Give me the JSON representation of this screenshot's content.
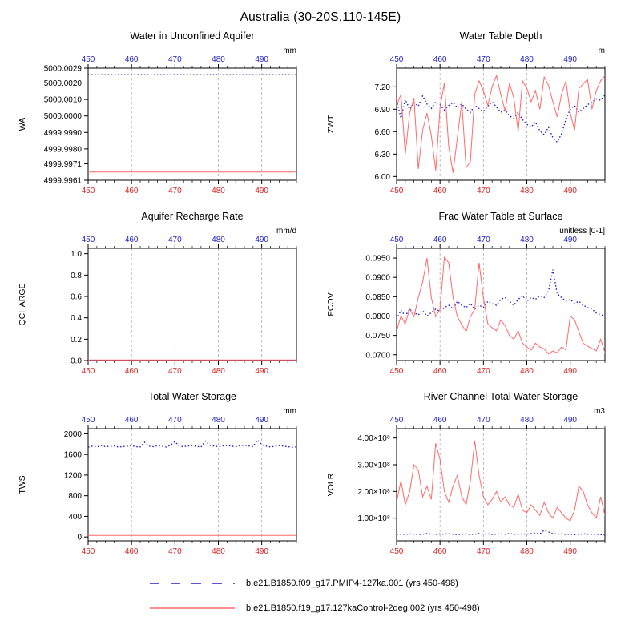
{
  "page_title": "Australia (30-20S,110-145E)",
  "colors": {
    "axis_top": "#2222cc",
    "axis_bottom": "#dd2222",
    "grid": "#aaaaaa",
    "frame": "#000000",
    "series_blue": "#2222cc",
    "series_red": "#ff6a6a"
  },
  "legend": {
    "entries": [
      {
        "label": "b.e21.B1850.f09_g17.PMIP4-127ka.001 (yrs 450-498)",
        "color": "#2222cc",
        "style": "dashed"
      },
      {
        "label": "b.e21.B1850.f19_g17.127kaControl-2deg.002 (yrs 450-498)",
        "color": "#ff6a6a",
        "style": "solid"
      }
    ]
  },
  "chart_data": [
    {
      "type": "line",
      "title": "Water in Unconfined Aquifer",
      "ylabel": "WA",
      "units": "mm",
      "xlim": [
        450,
        498
      ],
      "ylim": [
        4999.9961,
        5000.0029
      ],
      "x_ticks": [
        450,
        460,
        470,
        480,
        490
      ],
      "y_ticks": [
        {
          "v": 4999.9961,
          "label": "4999.9961"
        },
        {
          "v": 4999.9971,
          "label": "4999.9971"
        },
        {
          "v": 4999.998,
          "label": "4999.9980"
        },
        {
          "v": 4999.999,
          "label": "4999.9990"
        },
        {
          "v": 5000.0,
          "label": "5000.0000"
        },
        {
          "v": 5000.001,
          "label": "5000.0010"
        },
        {
          "v": 5000.002,
          "label": "5000.0020"
        },
        {
          "v": 5000.0029,
          "label": "5000.0029"
        }
      ],
      "series": [
        {
          "name": "PMIP4-127ka.001",
          "color": "#2222cc",
          "style": "dotted",
          "const": 5000.0025
        },
        {
          "name": "127kaControl-2deg.002",
          "color": "#ff6a6a",
          "style": "solid",
          "const": 4999.9966
        }
      ]
    },
    {
      "type": "line",
      "title": "Water Table Depth",
      "ylabel": "ZWT",
      "units": "m",
      "xlim": [
        450,
        498
      ],
      "ylim": [
        5.95,
        7.45
      ],
      "x_ticks": [
        450,
        460,
        470,
        480,
        490
      ],
      "y_ticks": [
        {
          "v": 6.0,
          "label": "6.00"
        },
        {
          "v": 6.3,
          "label": "6.30"
        },
        {
          "v": 6.6,
          "label": "6.60"
        },
        {
          "v": 6.9,
          "label": "6.90"
        },
        {
          "v": 7.2,
          "label": "7.20"
        }
      ],
      "series": [
        {
          "name": "PMIP4-127ka.001",
          "color": "#2222cc",
          "style": "dotted",
          "values": [
            7.02,
            6.78,
            7.03,
            6.9,
            6.99,
            6.94,
            7.08,
            6.97,
            6.91,
            7.0,
            6.96,
            6.89,
            6.95,
            6.99,
            6.92,
            6.97,
            6.9,
            6.86,
            6.95,
            6.91,
            6.87,
            6.94,
            7.0,
            6.93,
            6.86,
            6.89,
            6.81,
            6.78,
            6.86,
            6.76,
            6.7,
            6.66,
            6.73,
            6.61,
            6.56,
            6.66,
            6.52,
            6.46,
            6.57,
            6.76,
            6.9,
            6.95,
            6.86,
            6.91,
            6.96,
            7.0,
            7.04,
            7.02,
            7.09
          ]
        },
        {
          "name": "127kaControl-2deg.002",
          "color": "#ff6a6a",
          "style": "solid",
          "values": [
            6.95,
            7.1,
            6.3,
            6.85,
            7.05,
            6.1,
            6.62,
            6.85,
            6.55,
            6.08,
            6.92,
            7.25,
            6.4,
            6.05,
            6.52,
            7.0,
            6.12,
            6.2,
            7.1,
            7.28,
            7.15,
            6.95,
            7.2,
            7.35,
            7.1,
            6.88,
            7.25,
            7.05,
            6.6,
            7.28,
            7.18,
            7.0,
            7.15,
            6.9,
            7.33,
            7.22,
            7.0,
            6.8,
            7.1,
            7.28,
            6.85,
            6.62,
            7.18,
            7.24,
            7.3,
            6.9,
            7.15,
            7.28,
            7.35
          ]
        }
      ]
    },
    {
      "type": "line",
      "title": "Aquifer Recharge Rate",
      "ylabel": "QCHARGE",
      "units": "mm/d",
      "xlim": [
        450,
        498
      ],
      "ylim": [
        0,
        1.05
      ],
      "x_ticks": [
        450,
        460,
        470,
        480,
        490
      ],
      "y_ticks": [
        {
          "v": 0.0,
          "label": "0.0"
        },
        {
          "v": 0.2,
          "label": "0.2"
        },
        {
          "v": 0.4,
          "label": "0.4"
        },
        {
          "v": 0.6,
          "label": "0.6"
        },
        {
          "v": 0.8,
          "label": "0.8"
        },
        {
          "v": 1.0,
          "label": "1.0"
        }
      ],
      "series": [
        {
          "name": "PMIP4-127ka.001",
          "color": "#2222cc",
          "style": "dotted",
          "const": 0.0
        },
        {
          "name": "127kaControl-2deg.002",
          "color": "#ff6a6a",
          "style": "solid",
          "const": 0.006
        }
      ]
    },
    {
      "type": "line",
      "title": "Frac Water Table at Surface",
      "ylabel": "FCOV",
      "units": "unitless [0-1]",
      "xlim": [
        450,
        498
      ],
      "ylim": [
        0.0685,
        0.0975
      ],
      "x_ticks": [
        450,
        460,
        470,
        480,
        490
      ],
      "y_ticks": [
        {
          "v": 0.07,
          "label": "0.0700"
        },
        {
          "v": 0.075,
          "label": "0.0750"
        },
        {
          "v": 0.08,
          "label": "0.0800"
        },
        {
          "v": 0.085,
          "label": "0.0850"
        },
        {
          "v": 0.09,
          "label": "0.0900"
        },
        {
          "v": 0.095,
          "label": "0.0950"
        }
      ],
      "series": [
        {
          "name": "PMIP4-127ka.001",
          "color": "#2222cc",
          "style": "dotted",
          "values": [
            0.0792,
            0.0815,
            0.08,
            0.0818,
            0.0808,
            0.0803,
            0.0814,
            0.08,
            0.0809,
            0.0818,
            0.0812,
            0.0822,
            0.0828,
            0.0818,
            0.0838,
            0.0828,
            0.0822,
            0.0833,
            0.0818,
            0.0828,
            0.0822,
            0.0838,
            0.0832,
            0.0828,
            0.0843,
            0.0848,
            0.0838,
            0.0828,
            0.0843,
            0.0853,
            0.0838,
            0.0848,
            0.0843,
            0.0853,
            0.0848,
            0.0865,
            0.092,
            0.0858,
            0.0848,
            0.0838,
            0.0843,
            0.0833,
            0.0838,
            0.0828,
            0.0822,
            0.0818,
            0.0808,
            0.0803,
            0.08
          ]
        },
        {
          "name": "127kaControl-2deg.002",
          "color": "#ff6a6a",
          "style": "solid",
          "values": [
            0.0762,
            0.08,
            0.078,
            0.0818,
            0.0798,
            0.0848,
            0.0888,
            0.095,
            0.0848,
            0.0798,
            0.0818,
            0.0952,
            0.0938,
            0.0848,
            0.0798,
            0.0778,
            0.076,
            0.0798,
            0.0818,
            0.0938,
            0.0848,
            0.078,
            0.077,
            0.0762,
            0.079,
            0.0775,
            0.075,
            0.074,
            0.0762,
            0.073,
            0.072,
            0.0712,
            0.073,
            0.072,
            0.0715,
            0.0702,
            0.071,
            0.0705,
            0.072,
            0.0712,
            0.08,
            0.079,
            0.076,
            0.073,
            0.0722,
            0.0716,
            0.071,
            0.074,
            0.0706
          ]
        }
      ]
    },
    {
      "type": "line",
      "title": "Total Water Storage",
      "ylabel": "TWS",
      "units": "mm",
      "xlim": [
        450,
        498
      ],
      "ylim": [
        -75,
        2100
      ],
      "x_ticks": [
        450,
        460,
        470,
        480,
        490
      ],
      "y_ticks": [
        {
          "v": 0,
          "label": "0"
        },
        {
          "v": 400,
          "label": "400"
        },
        {
          "v": 800,
          "label": "800"
        },
        {
          "v": 1200,
          "label": "1200"
        },
        {
          "v": 1600,
          "label": "1600"
        },
        {
          "v": 2000,
          "label": "2000"
        }
      ],
      "series": [
        {
          "name": "PMIP4-127ka.001",
          "color": "#2222cc",
          "style": "dotted",
          "values": [
            1740,
            1762,
            1745,
            1772,
            1750,
            1756,
            1766,
            1745,
            1752,
            1760,
            1770,
            1750,
            1745,
            1838,
            1762,
            1750,
            1770,
            1760,
            1745,
            1780,
            1848,
            1762,
            1750,
            1766,
            1772,
            1756,
            1745,
            1858,
            1780,
            1762,
            1750,
            1766,
            1776,
            1762,
            1750,
            1770,
            1780,
            1766,
            1750,
            1878,
            1790,
            1762,
            1745,
            1756,
            1770,
            1762,
            1750,
            1740,
            1746
          ]
        },
        {
          "name": "127kaControl-2deg.002",
          "color": "#ff6a6a",
          "style": "solid",
          "const": 30
        }
      ]
    },
    {
      "type": "line",
      "title": "River Channel Total Water Storage",
      "ylabel": "VOLR",
      "units": "m3",
      "xlim": [
        450,
        498
      ],
      "ylim": [
        15000000.0,
        435000000.0
      ],
      "x_ticks": [
        450,
        460,
        470,
        480,
        490
      ],
      "y_ticks": [
        {
          "v": 100000000.0,
          "label": "1.00×10⁸"
        },
        {
          "v": 200000000.0,
          "label": "2.00×10⁸"
        },
        {
          "v": 300000000.0,
          "label": "3.00×10⁸"
        },
        {
          "v": 400000000.0,
          "label": "4.00×10⁸"
        }
      ],
      "series": [
        {
          "name": "PMIP4-127ka.001",
          "color": "#2222cc",
          "style": "dotted",
          "values": [
            38000000.0,
            40000000.0,
            39000000.0,
            41000000.0,
            40000000.0,
            38000000.0,
            40000000.0,
            42000000.0,
            40000000.0,
            39000000.0,
            41000000.0,
            40000000.0,
            42000000.0,
            40000000.0,
            38000000.0,
            40000000.0,
            41000000.0,
            39000000.0,
            40000000.0,
            42000000.0,
            40000000.0,
            41000000.0,
            39000000.0,
            40000000.0,
            41000000.0,
            40000000.0,
            42000000.0,
            40000000.0,
            39000000.0,
            41000000.0,
            40000000.0,
            42000000.0,
            44000000.0,
            41000000.0,
            55000000.0,
            48000000.0,
            42000000.0,
            40000000.0,
            41000000.0,
            39000000.0,
            40000000.0,
            38000000.0,
            40000000.0,
            41000000.0,
            40000000.0,
            39000000.0,
            40000000.0,
            38000000.0,
            37000000.0
          ]
        },
        {
          "name": "127kaControl-2deg.002",
          "color": "#ff6a6a",
          "style": "solid",
          "values": [
            160000000.0,
            240000000.0,
            150000000.0,
            200000000.0,
            300000000.0,
            280000000.0,
            180000000.0,
            220000000.0,
            170000000.0,
            380000000.0,
            320000000.0,
            200000000.0,
            160000000.0,
            220000000.0,
            260000000.0,
            180000000.0,
            150000000.0,
            240000000.0,
            390000000.0,
            260000000.0,
            180000000.0,
            150000000.0,
            170000000.0,
            200000000.0,
            160000000.0,
            180000000.0,
            150000000.0,
            140000000.0,
            190000000.0,
            130000000.0,
            120000000.0,
            150000000.0,
            130000000.0,
            110000000.0,
            160000000.0,
            120000000.0,
            100000000.0,
            140000000.0,
            120000000.0,
            100000000.0,
            90000000.0,
            130000000.0,
            220000000.0,
            200000000.0,
            150000000.0,
            120000000.0,
            100000000.0,
            180000000.0,
            110000000.0
          ]
        }
      ]
    }
  ]
}
